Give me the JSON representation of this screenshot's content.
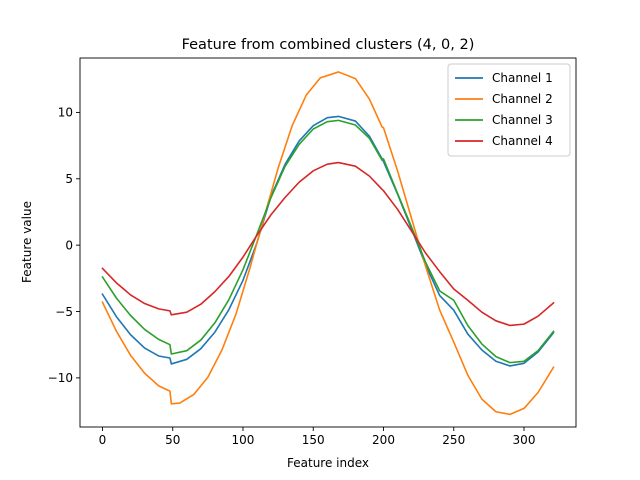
{
  "chart_data": {
    "type": "line",
    "title": "Feature from combined clusters (4, 0, 2)",
    "xlabel": "Feature index",
    "ylabel": "Feature value",
    "xlim": [
      -16,
      337
    ],
    "ylim": [
      -13.7,
      14.1
    ],
    "xticks": [
      0,
      50,
      100,
      150,
      200,
      250,
      300
    ],
    "yticks": [
      -10,
      -5,
      0,
      5,
      10
    ],
    "legend_position": "upper right",
    "series": [
      {
        "name": "Channel 1",
        "color": "#1f77b4",
        "points": [
          [
            0,
            -3.7
          ],
          [
            10,
            -5.4
          ],
          [
            20,
            -6.75
          ],
          [
            30,
            -7.75
          ],
          [
            40,
            -8.35
          ],
          [
            48,
            -8.5
          ],
          [
            49,
            -8.95
          ],
          [
            60,
            -8.6
          ],
          [
            70,
            -7.8
          ],
          [
            80,
            -6.55
          ],
          [
            90,
            -4.85
          ],
          [
            100,
            -2.65
          ],
          [
            110,
            0.2
          ],
          [
            120,
            3.7
          ],
          [
            130,
            6.1
          ],
          [
            140,
            7.85
          ],
          [
            150,
            9.0
          ],
          [
            160,
            9.6
          ],
          [
            168,
            9.7
          ],
          [
            180,
            9.35
          ],
          [
            190,
            8.2
          ],
          [
            199,
            6.5
          ],
          [
            200,
            6.3
          ],
          [
            210,
            3.85
          ],
          [
            220,
            1.2
          ],
          [
            230,
            -1.5
          ],
          [
            240,
            -3.8
          ],
          [
            250,
            -4.9
          ],
          [
            260,
            -6.7
          ],
          [
            270,
            -7.9
          ],
          [
            280,
            -8.75
          ],
          [
            290,
            -9.1
          ],
          [
            300,
            -8.9
          ],
          [
            310,
            -8.05
          ],
          [
            321,
            -6.6
          ]
        ]
      },
      {
        "name": "Channel 2",
        "color": "#ff7f0e",
        "points": [
          [
            0,
            -4.3
          ],
          [
            10,
            -6.5
          ],
          [
            20,
            -8.3
          ],
          [
            30,
            -9.65
          ],
          [
            40,
            -10.6
          ],
          [
            48,
            -11.0
          ],
          [
            49,
            -11.95
          ],
          [
            55,
            -11.9
          ],
          [
            65,
            -11.25
          ],
          [
            75,
            -9.95
          ],
          [
            85,
            -7.9
          ],
          [
            95,
            -5.2
          ],
          [
            105,
            -1.7
          ],
          [
            115,
            2.1
          ],
          [
            125,
            5.8
          ],
          [
            135,
            9.0
          ],
          [
            145,
            11.3
          ],
          [
            155,
            12.6
          ],
          [
            168,
            13.05
          ],
          [
            180,
            12.55
          ],
          [
            190,
            11.0
          ],
          [
            199,
            8.9
          ],
          [
            200,
            8.85
          ],
          [
            210,
            5.6
          ],
          [
            220,
            2.0
          ],
          [
            230,
            -1.6
          ],
          [
            240,
            -4.9
          ],
          [
            250,
            -7.3
          ],
          [
            260,
            -9.8
          ],
          [
            270,
            -11.6
          ],
          [
            280,
            -12.55
          ],
          [
            290,
            -12.75
          ],
          [
            300,
            -12.3
          ],
          [
            310,
            -11.1
          ],
          [
            321,
            -9.2
          ]
        ]
      },
      {
        "name": "Channel 3",
        "color": "#2ca02c",
        "points": [
          [
            0,
            -2.4
          ],
          [
            10,
            -4.0
          ],
          [
            20,
            -5.3
          ],
          [
            30,
            -6.35
          ],
          [
            40,
            -7.1
          ],
          [
            48,
            -7.5
          ],
          [
            49,
            -8.2
          ],
          [
            60,
            -7.95
          ],
          [
            70,
            -7.15
          ],
          [
            80,
            -5.85
          ],
          [
            90,
            -4.1
          ],
          [
            100,
            -1.85
          ],
          [
            110,
            0.85
          ],
          [
            120,
            3.6
          ],
          [
            130,
            5.95
          ],
          [
            140,
            7.6
          ],
          [
            150,
            8.75
          ],
          [
            160,
            9.3
          ],
          [
            168,
            9.4
          ],
          [
            180,
            9.05
          ],
          [
            190,
            8.05
          ],
          [
            199,
            6.4
          ],
          [
            200,
            6.5
          ],
          [
            210,
            3.9
          ],
          [
            220,
            1.35
          ],
          [
            230,
            -1.3
          ],
          [
            240,
            -3.45
          ],
          [
            250,
            -4.15
          ],
          [
            260,
            -6.05
          ],
          [
            270,
            -7.45
          ],
          [
            280,
            -8.4
          ],
          [
            290,
            -8.85
          ],
          [
            300,
            -8.75
          ],
          [
            310,
            -7.95
          ],
          [
            321,
            -6.5
          ]
        ]
      },
      {
        "name": "Channel 4",
        "color": "#d62728",
        "points": [
          [
            0,
            -1.75
          ],
          [
            10,
            -2.85
          ],
          [
            20,
            -3.75
          ],
          [
            30,
            -4.4
          ],
          [
            40,
            -4.8
          ],
          [
            48,
            -4.95
          ],
          [
            49,
            -5.25
          ],
          [
            60,
            -5.05
          ],
          [
            70,
            -4.45
          ],
          [
            80,
            -3.5
          ],
          [
            90,
            -2.35
          ],
          [
            100,
            -0.9
          ],
          [
            110,
            0.75
          ],
          [
            120,
            2.3
          ],
          [
            130,
            3.6
          ],
          [
            140,
            4.75
          ],
          [
            150,
            5.6
          ],
          [
            160,
            6.1
          ],
          [
            168,
            6.22
          ],
          [
            180,
            5.95
          ],
          [
            190,
            5.2
          ],
          [
            199,
            4.2
          ],
          [
            200,
            4.1
          ],
          [
            210,
            2.7
          ],
          [
            220,
            1.05
          ],
          [
            230,
            -0.6
          ],
          [
            240,
            -2.0
          ],
          [
            250,
            -3.3
          ],
          [
            260,
            -4.15
          ],
          [
            270,
            -5.05
          ],
          [
            280,
            -5.7
          ],
          [
            290,
            -6.05
          ],
          [
            300,
            -5.95
          ],
          [
            310,
            -5.35
          ],
          [
            321,
            -4.35
          ]
        ]
      }
    ]
  }
}
